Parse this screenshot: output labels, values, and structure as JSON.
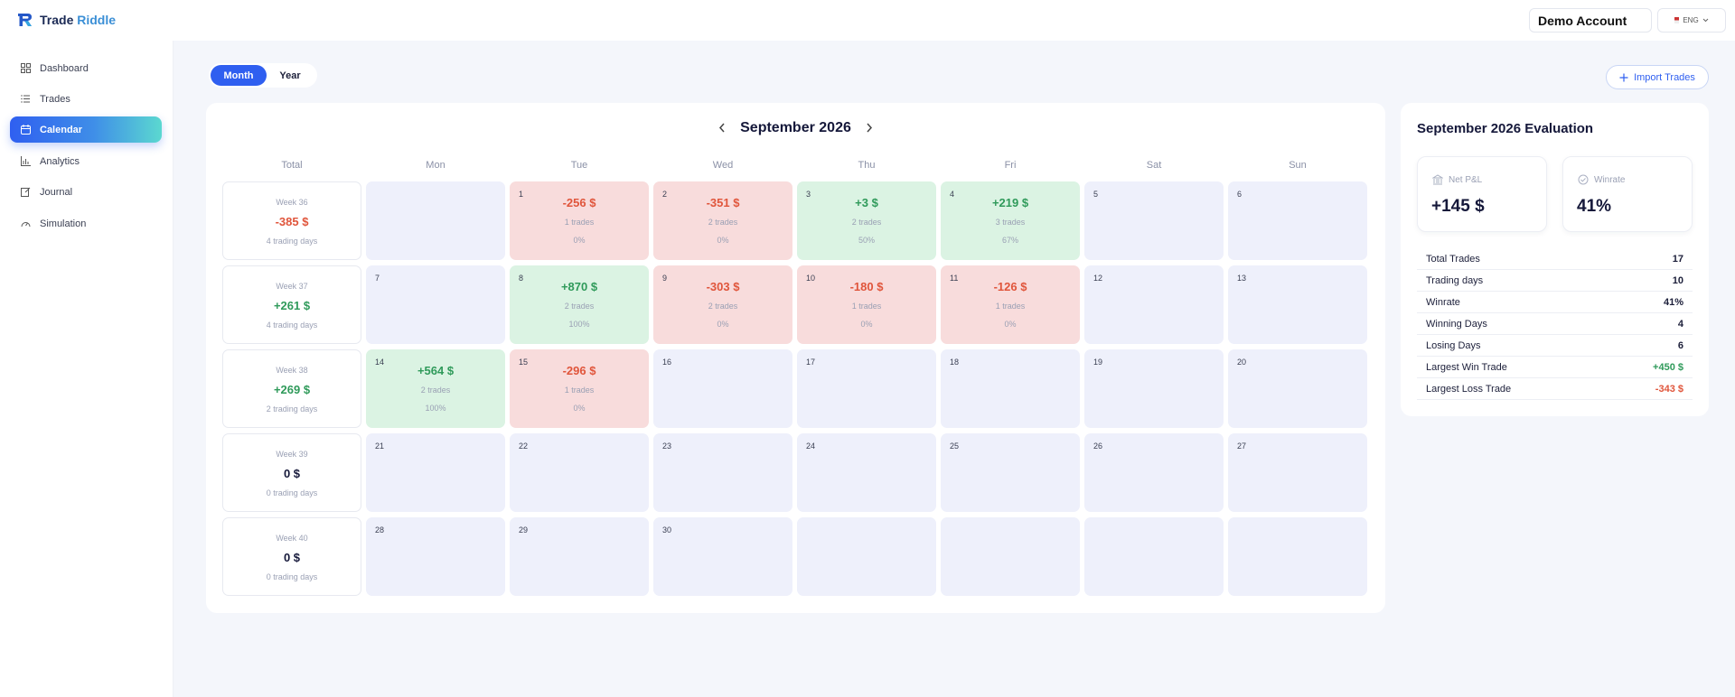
{
  "brand": {
    "name_part1": "Trade ",
    "name_part2": "Riddle"
  },
  "header": {
    "account": "Demo Account",
    "language": "ENG"
  },
  "sidebar": {
    "items": [
      {
        "label": "Dashboard",
        "icon": "dashboard-icon"
      },
      {
        "label": "Trades",
        "icon": "list-icon"
      },
      {
        "label": "Calendar",
        "icon": "calendar-icon",
        "active": true
      },
      {
        "label": "Analytics",
        "icon": "chart-icon"
      },
      {
        "label": "Journal",
        "icon": "journal-icon"
      },
      {
        "label": "Simulation",
        "icon": "simulation-icon"
      }
    ]
  },
  "toolbar": {
    "month": "Month",
    "year": "Year",
    "import": "Import Trades"
  },
  "calendar": {
    "title": "September 2026",
    "columns": [
      "Total",
      "Mon",
      "Tue",
      "Wed",
      "Thu",
      "Fri",
      "Sat",
      "Sun"
    ],
    "weeks": [
      {
        "label": "Week 36",
        "pnl": "-385 $",
        "days": "4 trading days",
        "sign": "neg",
        "cells": [
          {
            "day": ""
          },
          {
            "day": "1",
            "pnl": "-256 $",
            "trades": "1 trades",
            "wr": "0%",
            "type": "loss"
          },
          {
            "day": "2",
            "pnl": "-351 $",
            "trades": "2 trades",
            "wr": "0%",
            "type": "loss"
          },
          {
            "day": "3",
            "pnl": "+3 $",
            "trades": "2 trades",
            "wr": "50%",
            "type": "win"
          },
          {
            "day": "4",
            "pnl": "+219 $",
            "trades": "3 trades",
            "wr": "67%",
            "type": "win"
          },
          {
            "day": "5"
          },
          {
            "day": "6"
          }
        ]
      },
      {
        "label": "Week 37",
        "pnl": "+261 $",
        "days": "4 trading days",
        "sign": "pos",
        "cells": [
          {
            "day": "7"
          },
          {
            "day": "8",
            "pnl": "+870 $",
            "trades": "2 trades",
            "wr": "100%",
            "type": "win"
          },
          {
            "day": "9",
            "pnl": "-303 $",
            "trades": "2 trades",
            "wr": "0%",
            "type": "loss"
          },
          {
            "day": "10",
            "pnl": "-180 $",
            "trades": "1 trades",
            "wr": "0%",
            "type": "loss"
          },
          {
            "day": "11",
            "pnl": "-126 $",
            "trades": "1 trades",
            "wr": "0%",
            "type": "loss"
          },
          {
            "day": "12"
          },
          {
            "day": "13"
          }
        ]
      },
      {
        "label": "Week 38",
        "pnl": "+269 $",
        "days": "2 trading days",
        "sign": "pos",
        "cells": [
          {
            "day": "14",
            "pnl": "+564 $",
            "trades": "2 trades",
            "wr": "100%",
            "type": "win"
          },
          {
            "day": "15",
            "pnl": "-296 $",
            "trades": "1 trades",
            "wr": "0%",
            "type": "loss"
          },
          {
            "day": "16"
          },
          {
            "day": "17"
          },
          {
            "day": "18"
          },
          {
            "day": "19"
          },
          {
            "day": "20"
          }
        ]
      },
      {
        "label": "Week 39",
        "pnl": "0 $",
        "days": "0 trading days",
        "sign": "zero",
        "cells": [
          {
            "day": "21"
          },
          {
            "day": "22"
          },
          {
            "day": "23"
          },
          {
            "day": "24"
          },
          {
            "day": "25"
          },
          {
            "day": "26"
          },
          {
            "day": "27"
          }
        ]
      },
      {
        "label": "Week 40",
        "pnl": "0 $",
        "days": "0 trading days",
        "sign": "zero",
        "cells": [
          {
            "day": "28"
          },
          {
            "day": "29"
          },
          {
            "day": "30"
          },
          {
            "day": ""
          },
          {
            "day": ""
          },
          {
            "day": ""
          },
          {
            "day": ""
          }
        ]
      }
    ]
  },
  "evaluation": {
    "title": "September 2026 Evaluation",
    "net_pnl_label": "Net P&L",
    "net_pnl": "+145 $",
    "winrate_label": "Winrate",
    "winrate": "41%",
    "metrics": [
      {
        "label": "Total Trades",
        "value": "17",
        "tone": ""
      },
      {
        "label": "Trading days",
        "value": "10",
        "tone": ""
      },
      {
        "label": "Winrate",
        "value": "41%",
        "tone": ""
      },
      {
        "label": "Winning Days",
        "value": "4",
        "tone": ""
      },
      {
        "label": "Losing Days",
        "value": "6",
        "tone": ""
      },
      {
        "label": "Largest Win Trade",
        "value": "+450 $",
        "tone": "pos"
      },
      {
        "label": "Largest Loss Trade",
        "value": "-343 $",
        "tone": "neg"
      }
    ]
  },
  "colors": {
    "accent": "#2f5ff0",
    "win_bg": "#dbf3e3",
    "loss_bg": "#f8dcdc",
    "positive": "#2f9a5a",
    "negative": "#e0553b"
  }
}
